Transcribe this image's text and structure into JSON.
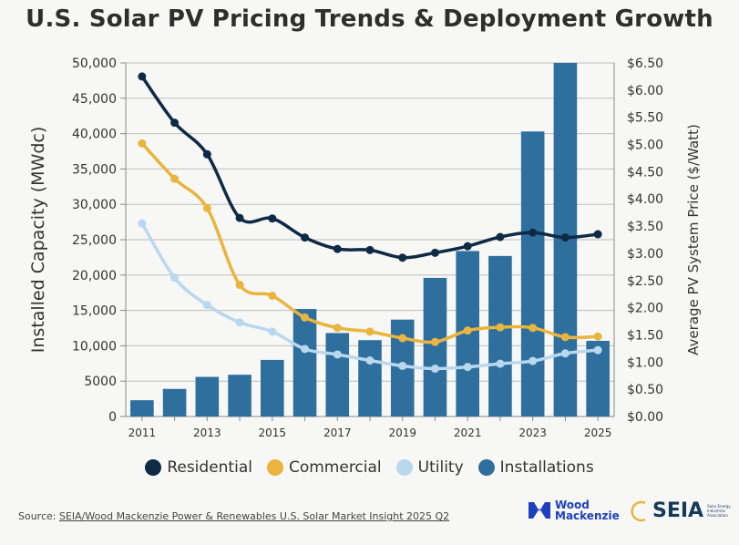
{
  "title": "U.S. Solar PV Pricing Trends & Deployment Growth",
  "chart_data": {
    "type": "bar+line",
    "title": "U.S. Solar PV Pricing Trends & Deployment Growth",
    "x": [
      2011,
      2012,
      2013,
      2014,
      2015,
      2016,
      2017,
      2018,
      2019,
      2020,
      2021,
      2022,
      2023,
      2024,
      2025
    ],
    "x_tick_labels": [
      "2011",
      "2013",
      "2015",
      "2017",
      "2019",
      "2021",
      "2023",
      "2025"
    ],
    "y_left_label": "Installed Capacity (MWdc)",
    "y_left_range": [
      0,
      50000
    ],
    "y_left_ticks": [
      "0",
      "5000",
      "10,000",
      "15,000",
      "20,000",
      "25,000",
      "30,000",
      "35,000",
      "40,000",
      "45,000",
      "50,000"
    ],
    "y_right_label": "Average PV System Price ($/Watt)",
    "y_right_range": [
      0,
      6.5
    ],
    "y_right_ticks": [
      "$0.00",
      "$0.50",
      "$1.00",
      "$1.50",
      "$2.00",
      "$2.50",
      "$3.00",
      "$3.50",
      "$4.00",
      "$4.50",
      "$5.00",
      "$5.50",
      "$6.00",
      "$6.50"
    ],
    "bars": {
      "name": "Installations",
      "axis": "left",
      "color": "#2e6f9e",
      "values": [
        2300,
        3900,
        5600,
        5900,
        8000,
        15200,
        11800,
        10800,
        13700,
        19600,
        23400,
        22700,
        40300,
        50000,
        10700
      ]
    },
    "series": [
      {
        "name": "Residential",
        "axis": "right",
        "color": "#0f2a44",
        "values": [
          6.25,
          5.4,
          4.82,
          3.65,
          3.64,
          3.29,
          3.08,
          3.06,
          2.92,
          3.01,
          3.13,
          3.3,
          3.38,
          3.29,
          3.35
        ]
      },
      {
        "name": "Commercial",
        "axis": "right",
        "color": "#e9b53e",
        "values": [
          5.02,
          4.37,
          3.83,
          2.42,
          2.22,
          1.82,
          1.63,
          1.56,
          1.44,
          1.37,
          1.58,
          1.64,
          1.63,
          1.46,
          1.47
        ]
      },
      {
        "name": "Utility",
        "axis": "right",
        "color": "#b9d8ee",
        "values": [
          3.55,
          2.55,
          2.05,
          1.73,
          1.56,
          1.24,
          1.14,
          1.03,
          0.93,
          0.88,
          0.91,
          0.97,
          1.02,
          1.16,
          1.22
        ]
      }
    ],
    "legend": [
      "Residential",
      "Commercial",
      "Utility",
      "Installations"
    ],
    "grid": true,
    "legend_position": "bottom"
  },
  "source": {
    "prefix": "Source: ",
    "link_text": "SEIA/Wood Mackenzie Power & Renewables U.S. Solar Market Insight 2025 Q2"
  },
  "logos": {
    "wood_line1": "Wood",
    "wood_line2": "Mackenzie",
    "seia": "SEIA",
    "seia_sub": "Solar Energy Industries Association"
  }
}
